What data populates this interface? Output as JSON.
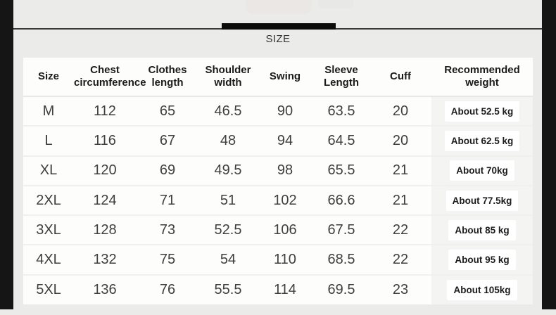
{
  "page": {
    "colors": {
      "background": "#ebebea",
      "frame": "#151515",
      "accent_bar": "#0b0b0b",
      "table_background": "#fdfdfc",
      "weight_column_background": "#f4f4f2"
    }
  },
  "header": {
    "title": "SIZE"
  },
  "table": {
    "headers": [
      "Size",
      "Chest\ncircumference",
      "Clothes\nlength",
      "Shoulder\nwidth",
      "Swing",
      "Sleeve\nLength",
      "Cuff",
      "Recommended\nweight"
    ],
    "column_keys": [
      "size",
      "chest",
      "clothes",
      "shoulder",
      "swing",
      "sleeve",
      "cuff",
      "weight"
    ],
    "rows": [
      {
        "size": "M",
        "chest": "112",
        "clothes": "65",
        "shoulder": "46.5",
        "swing": "90",
        "sleeve": "63.5",
        "cuff": "20",
        "weight": "About 52.5 kg"
      },
      {
        "size": "L",
        "chest": "116",
        "clothes": "67",
        "shoulder": "48",
        "swing": "94",
        "sleeve": "64.5",
        "cuff": "20",
        "weight": "About 62.5 kg"
      },
      {
        "size": "XL",
        "chest": "120",
        "clothes": "69",
        "shoulder": "49.5",
        "swing": "98",
        "sleeve": "65.5",
        "cuff": "21",
        "weight": "About 70kg"
      },
      {
        "size": "2XL",
        "chest": "124",
        "clothes": "71",
        "shoulder": "51",
        "swing": "102",
        "sleeve": "66.6",
        "cuff": "21",
        "weight": "About 77.5kg"
      },
      {
        "size": "3XL",
        "chest": "128",
        "clothes": "73",
        "shoulder": "52.5",
        "swing": "106",
        "sleeve": "67.5",
        "cuff": "22",
        "weight": "About 85 kg"
      },
      {
        "size": "4XL",
        "chest": "132",
        "clothes": "75",
        "shoulder": "54",
        "swing": "110",
        "sleeve": "68.5",
        "cuff": "22",
        "weight": "About 95 kg"
      },
      {
        "size": "5XL",
        "chest": "136",
        "clothes": "76",
        "shoulder": "55.5",
        "swing": "114",
        "sleeve": "69.5",
        "cuff": "23",
        "weight": "About 105kg"
      }
    ]
  }
}
